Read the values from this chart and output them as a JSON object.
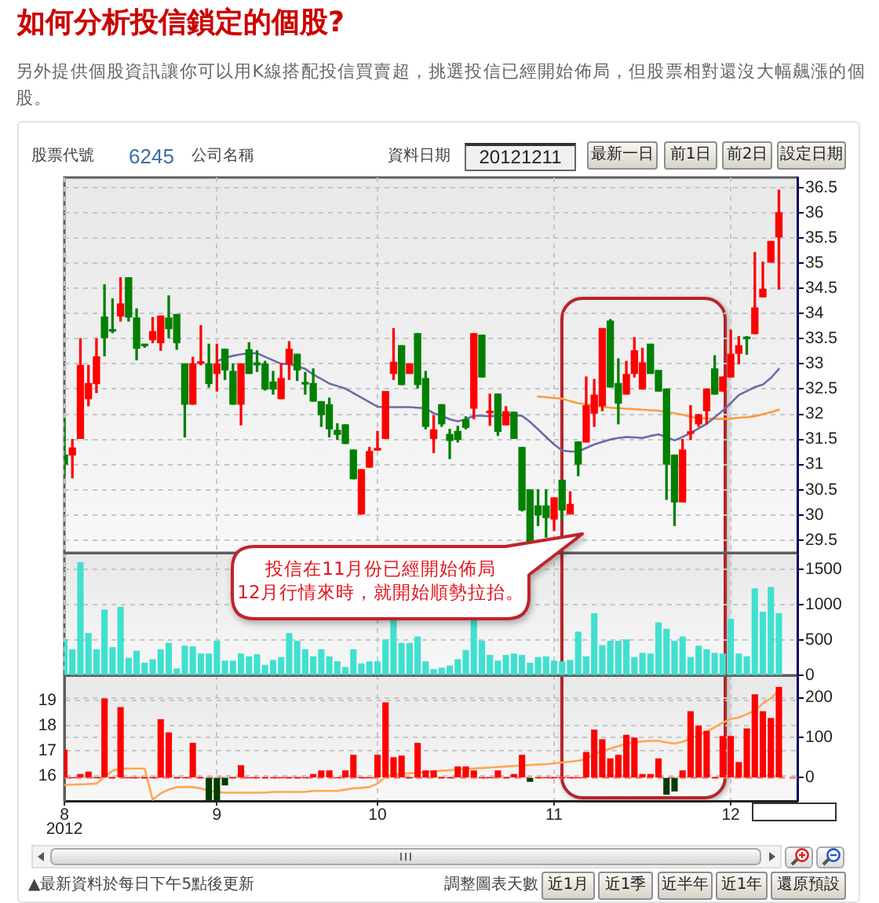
{
  "chart_data": [
    {
      "type": "candlestick",
      "title": "如何分析投信鎖定的個股?",
      "subtitle": "另外提供個股資訊讓你可以用K線搭配投信買賣超，挑選投信已經開始佈局，但股票相對還沒大幅飆漲的個股。",
      "categories": [
        "8",
        null,
        null,
        null,
        null,
        null,
        null,
        null,
        null,
        null,
        null,
        null,
        null,
        null,
        null,
        null,
        null,
        null,
        null,
        "9",
        null,
        null,
        null,
        null,
        null,
        null,
        null,
        null,
        null,
        null,
        null,
        null,
        null,
        null,
        null,
        null,
        null,
        null,
        null,
        "10",
        null,
        null,
        null,
        null,
        null,
        null,
        null,
        null,
        null,
        null,
        null,
        null,
        null,
        null,
        null,
        null,
        null,
        null,
        null,
        null,
        null,
        "11",
        null,
        null,
        null,
        null,
        null,
        null,
        null,
        null,
        null,
        null,
        null,
        null,
        null,
        null,
        null,
        null,
        null,
        null,
        null,
        null,
        null,
        "12",
        null,
        null,
        null,
        null,
        null,
        null
      ],
      "series": [
        {
          "ohlc": [
            [
              31.19,
              31.91,
              30.78,
              31.01
            ],
            [
              31.19,
              31.5,
              30.74,
              31.33
            ],
            [
              31.52,
              33.5,
              31.52,
              32.97
            ],
            [
              32.31,
              32.97,
              32.17,
              32.61
            ],
            [
              32.61,
              33.5,
              32.43,
              33.14
            ],
            [
              33.93,
              34.57,
              33.16,
              33.52
            ],
            [
              33.65,
              34.29,
              33.62,
              33.65
            ],
            [
              33.95,
              34.71,
              33.85,
              34.19
            ],
            [
              34.71,
              34.71,
              33.85,
              33.93
            ],
            [
              33.91,
              34.09,
              33.08,
              33.31
            ],
            [
              33.36,
              33.38,
              33.33,
              33.36
            ],
            [
              33.48,
              33.92,
              33.42,
              33.64
            ],
            [
              33.42,
              33.95,
              33.27,
              33.95
            ],
            [
              33.91,
              34.35,
              33.52,
              33.7
            ],
            [
              33.98,
              33.98,
              33.29,
              33.42
            ],
            [
              33.0,
              33.0,
              31.55,
              32.2
            ],
            [
              32.2,
              33.13,
              32.2,
              33.0
            ],
            [
              33.01,
              33.76,
              32.98,
              33.04
            ],
            [
              33.0,
              33.39,
              32.54,
              32.61
            ],
            [
              32.81,
              33.39,
              32.46,
              33.0
            ],
            [
              33.29,
              33.29,
              32.69,
              32.88
            ],
            [
              32.85,
              33.0,
              32.2,
              32.2
            ],
            [
              32.2,
              33.0,
              31.79,
              33.0
            ],
            [
              33.28,
              33.42,
              32.81,
              32.81
            ],
            [
              33.02,
              33.26,
              32.85,
              32.98
            ],
            [
              33.0,
              33.05,
              32.48,
              32.5
            ],
            [
              32.64,
              32.85,
              32.4,
              32.5
            ],
            [
              32.31,
              33.0,
              32.31,
              32.71
            ],
            [
              33.0,
              33.44,
              32.69,
              33.29
            ],
            [
              33.19,
              33.19,
              32.67,
              32.88
            ],
            [
              32.62,
              32.83,
              32.4,
              32.6
            ],
            [
              32.61,
              32.9,
              32.26,
              32.26
            ],
            [
              32.25,
              32.25,
              31.76,
              31.99
            ],
            [
              32.19,
              32.32,
              31.55,
              31.71
            ],
            [
              31.68,
              31.81,
              31.5,
              31.6
            ],
            [
              31.79,
              31.79,
              31.42,
              31.42
            ],
            [
              31.29,
              31.29,
              30.72,
              30.72
            ],
            [
              30.02,
              30.9,
              30.02,
              30.9
            ],
            [
              30.95,
              31.34,
              30.95,
              31.26
            ],
            [
              31.29,
              31.66,
              31.29,
              31.31
            ],
            [
              31.52,
              32.45,
              31.52,
              32.45
            ],
            [
              32.81,
              33.7,
              32.69,
              33.03
            ],
            [
              33.36,
              33.36,
              32.59,
              32.59
            ],
            [
              32.81,
              33.0,
              32.81,
              33.0
            ],
            [
              33.6,
              33.6,
              32.52,
              32.59
            ],
            [
              32.71,
              32.85,
              31.71,
              31.76
            ],
            [
              31.52,
              31.97,
              31.24,
              31.69
            ],
            [
              32.19,
              32.19,
              31.76,
              31.81
            ],
            [
              31.6,
              31.7,
              31.12,
              31.48
            ],
            [
              31.66,
              31.76,
              31.45,
              31.5
            ],
            [
              31.89,
              31.95,
              31.71,
              31.74
            ],
            [
              32.12,
              33.6,
              31.91,
              33.6
            ],
            [
              33.57,
              33.57,
              32.74,
              32.74
            ],
            [
              32.03,
              32.4,
              31.78,
              32.05
            ],
            [
              32.4,
              32.4,
              31.58,
              31.66
            ],
            [
              31.79,
              32.15,
              31.79,
              32.05
            ],
            [
              32.04,
              32.04,
              31.52,
              31.52
            ],
            [
              31.34,
              31.34,
              30.08,
              30.1
            ],
            [
              30.5,
              30.5,
              29.43,
              29.43
            ],
            [
              30.18,
              30.5,
              29.79,
              30.0
            ],
            [
              30.18,
              30.5,
              29.56,
              29.95
            ],
            [
              29.92,
              30.34,
              29.69,
              30.34
            ],
            [
              30.69,
              30.69,
              29.9,
              30.1
            ],
            [
              30.02,
              30.46,
              30.02,
              30.21
            ],
            [
              31.45,
              31.45,
              30.78,
              31.01
            ],
            [
              31.45,
              32.74,
              31.45,
              32.17
            ],
            [
              32.02,
              32.69,
              31.76,
              32.38
            ],
            [
              32.17,
              33.7,
              32.07,
              33.7
            ],
            [
              33.85,
              33.88,
              32.54,
              32.54
            ],
            [
              32.61,
              33.1,
              31.81,
              32.22
            ],
            [
              32.4,
              33.05,
              32.4,
              32.79
            ],
            [
              32.81,
              33.52,
              32.74,
              33.26
            ],
            [
              32.5,
              33.31,
              32.5,
              33.02
            ],
            [
              33.39,
              33.39,
              32.81,
              32.81
            ],
            [
              32.87,
              32.87,
              32.46,
              32.46
            ],
            [
              32.5,
              32.5,
              30.31,
              31.01
            ],
            [
              31.19,
              31.19,
              29.79,
              30.26
            ],
            [
              30.26,
              31.5,
              30.26,
              31.29
            ],
            [
              31.62,
              32.17,
              31.5,
              31.64
            ],
            [
              31.81,
              31.99,
              31.76,
              31.99
            ],
            [
              32.07,
              32.5,
              31.81,
              32.5
            ],
            [
              32.9,
              33.16,
              32.4,
              32.4
            ],
            [
              32.46,
              32.74,
              32.46,
              32.74
            ],
            [
              32.74,
              33.67,
              32.74,
              33.19
            ],
            [
              33.21,
              33.54,
              33.0,
              33.36
            ],
            [
              33.52,
              33.54,
              33.19,
              33.5
            ],
            [
              33.6,
              35.21,
              33.6,
              34.11
            ],
            [
              34.33,
              35.02,
              34.33,
              34.48
            ],
            [
              35.02,
              35.43,
              35.02,
              35.43
            ],
            [
              35.52,
              36.45,
              34.48,
              36.0
            ]
          ],
          "colors": [
            "#008000",
            "#ff0000",
            "#ff0000",
            "#ff0000",
            "#ff0000",
            "#008000",
            "#008000",
            "#ff0000",
            "#008000",
            "#008000",
            "#008000",
            "#ff0000",
            "#ff0000",
            "#008000",
            "#008000",
            "#008000",
            "#ff0000",
            "#ff0000",
            "#008000",
            "#ff0000",
            "#008000",
            "#008000",
            "#ff0000",
            "#008000",
            "#008000",
            "#008000",
            "#008000",
            "#ff0000",
            "#ff0000",
            "#008000",
            "#008000",
            "#008000",
            "#008000",
            "#008000",
            "#008000",
            "#008000",
            "#008000",
            "#ff0000",
            "#ff0000",
            "#ff0000",
            "#ff0000",
            "#ff0000",
            "#008000",
            "#ff0000",
            "#008000",
            "#008000",
            "#ff0000",
            "#008000",
            "#008000",
            "#008000",
            "#008000",
            "#ff0000",
            "#008000",
            "#ff0000",
            "#008000",
            "#ff0000",
            "#008000",
            "#008000",
            "#008000",
            "#008000",
            "#008000",
            "#ff0000",
            "#008000",
            "#ff0000",
            "#008000",
            "#ff0000",
            "#ff0000",
            "#ff0000",
            "#008000",
            "#008000",
            "#ff0000",
            "#ff0000",
            "#ff0000",
            "#008000",
            "#008000",
            "#008000",
            "#008000",
            "#ff0000",
            "#ff0000",
            "#ff0000",
            "#ff0000",
            "#008000",
            "#ff0000",
            "#ff0000",
            "#ff0000",
            "#008000",
            "#ff0000",
            "#ff0000",
            "#ff0000",
            "#ff0000"
          ]
        },
        {
          "type": "line",
          "color": "#6b6ba8",
          "values": [
            null,
            null,
            null,
            null,
            null,
            null,
            null,
            null,
            null,
            null,
            null,
            null,
            null,
            null,
            null,
            null,
            null,
            null,
            null,
            33.05,
            33.12,
            33.16,
            33.19,
            33.21,
            33.21,
            33.14,
            33.07,
            33.0,
            33.0,
            32.95,
            32.9,
            32.79,
            32.7,
            32.61,
            32.56,
            32.51,
            32.42,
            32.33,
            32.24,
            32.15,
            32.14,
            32.14,
            32.14,
            32.14,
            32.13,
            32.12,
            32.02,
            31.97,
            31.9,
            31.86,
            31.9,
            31.97,
            31.97,
            31.96,
            31.97,
            31.99,
            31.98,
            31.97,
            31.85,
            31.7,
            31.55,
            31.4,
            31.28,
            31.26,
            31.26,
            31.33,
            31.4,
            31.45,
            31.5,
            31.53,
            31.55,
            31.54,
            31.53,
            31.57,
            31.6,
            31.55,
            31.48,
            31.55,
            31.63,
            31.72,
            31.81,
            31.94,
            32.07,
            32.22,
            32.38,
            32.46,
            32.54,
            32.59,
            32.72,
            32.9
          ]
        },
        {
          "type": "line",
          "color": "#ff9c40",
          "values": [
            null,
            null,
            null,
            null,
            null,
            null,
            null,
            null,
            null,
            null,
            null,
            null,
            null,
            null,
            null,
            null,
            null,
            null,
            null,
            null,
            null,
            null,
            null,
            null,
            null,
            null,
            null,
            null,
            null,
            null,
            null,
            null,
            null,
            null,
            null,
            null,
            null,
            null,
            null,
            null,
            null,
            null,
            null,
            null,
            null,
            null,
            null,
            null,
            null,
            null,
            null,
            null,
            null,
            null,
            null,
            null,
            null,
            null,
            null,
            32.35,
            32.34,
            32.32,
            32.31,
            32.26,
            32.22,
            32.2,
            32.17,
            32.15,
            32.13,
            32.12,
            32.11,
            32.1,
            32.09,
            32.08,
            32.07,
            32.04,
            32.02,
            31.99,
            31.95,
            31.92,
            31.92,
            31.91,
            31.91,
            31.91,
            31.93,
            31.94,
            31.96,
            32.0,
            32.04,
            32.09
          ]
        }
      ],
      "ylim": [
        29.25,
        36.7
      ],
      "yticks": [
        29.5,
        30,
        30.5,
        31,
        31.5,
        32,
        32.5,
        33,
        33.5,
        34,
        34.5,
        35,
        35.5,
        36,
        36.5
      ],
      "grid": true,
      "tick_labels": "y",
      "annotations": [
        "股票代號",
        "6245",
        "公司名稱",
        "資料日期",
        "20121211",
        "最新一日",
        "前1日",
        "前2日",
        "設定日期",
        "投信在11月份已經開始佈局",
        "12月行情來時，就開始順勢拉抬。"
      ]
    },
    {
      "type": "bar",
      "categories": [
        "8",
        null,
        null,
        null,
        null,
        null,
        null,
        null,
        null,
        null,
        null,
        null,
        null,
        null,
        null,
        null,
        null,
        null,
        null,
        "9",
        null,
        null,
        null,
        null,
        null,
        null,
        null,
        null,
        null,
        null,
        null,
        null,
        null,
        null,
        null,
        null,
        null,
        null,
        null,
        "10",
        null,
        null,
        null,
        null,
        null,
        null,
        null,
        null,
        null,
        null,
        null,
        null,
        null,
        null,
        null,
        null,
        null,
        null,
        null,
        null,
        null,
        "11",
        null,
        null,
        null,
        null,
        null,
        null,
        null,
        null,
        null,
        null,
        null,
        null,
        null,
        null,
        null,
        null,
        null,
        null,
        null,
        null,
        null,
        "12",
        null,
        null,
        null,
        null,
        null,
        null
      ],
      "values": [
        500,
        360,
        1590,
        590,
        360,
        920,
        390,
        960,
        240,
        340,
        170,
        220,
        360,
        450,
        90,
        410,
        400,
        300,
        300,
        480,
        200,
        200,
        300,
        260,
        290,
        140,
        210,
        250,
        590,
        480,
        360,
        260,
        360,
        260,
        190,
        110,
        360,
        160,
        190,
        190,
        500,
        770,
        450,
        450,
        540,
        190,
        80,
        100,
        130,
        220,
        350,
        770,
        480,
        280,
        200,
        280,
        300,
        280,
        170,
        250,
        260,
        200,
        190,
        210,
        610,
        260,
        870,
        420,
        480,
        480,
        500,
        250,
        310,
        300,
        740,
        650,
        480,
        540,
        250,
        410,
        360,
        310,
        300,
        790,
        300,
        260,
        1220,
        890,
        1240,
        870
      ],
      "color": "#40e0d0",
      "ylim": [
        0,
        1730
      ],
      "yticks": [
        0,
        500,
        1000,
        1500
      ],
      "grid": true,
      "tick_labels": "y"
    },
    {
      "type": "bar",
      "xlabel": "2012",
      "categories": [
        "8",
        null,
        null,
        null,
        null,
        null,
        null,
        null,
        null,
        null,
        null,
        null,
        null,
        null,
        null,
        null,
        null,
        null,
        null,
        "9",
        null,
        null,
        null,
        null,
        null,
        null,
        null,
        null,
        null,
        null,
        null,
        null,
        null,
        null,
        null,
        null,
        null,
        null,
        null,
        "10",
        null,
        null,
        null,
        null,
        null,
        null,
        null,
        null,
        null,
        null,
        null,
        null,
        null,
        null,
        null,
        null,
        null,
        null,
        null,
        null,
        null,
        "11",
        null,
        null,
        null,
        null,
        null,
        null,
        null,
        null,
        null,
        null,
        null,
        null,
        null,
        null,
        null,
        null,
        null,
        null,
        null,
        null,
        null,
        "12",
        null,
        null,
        null,
        null,
        null,
        null
      ],
      "series": [
        {
          "values": [
            69,
            0,
            8,
            14,
            0,
            197,
            0,
            175,
            0,
            0,
            0,
            0,
            145,
            112,
            0,
            0,
            86,
            0,
            -55,
            -55,
            -18,
            0,
            30,
            0,
            0,
            0,
            0,
            0,
            0,
            0,
            0,
            8,
            17,
            17,
            0,
            17,
            56,
            0,
            0,
            56,
            187,
            50,
            54,
            0,
            86,
            17,
            17,
            0,
            0,
            27,
            27,
            17,
            0,
            0,
            17,
            0,
            8,
            56,
            -9,
            0,
            0,
            0,
            0,
            0,
            0,
            63,
            119,
            95,
            47,
            56,
            106,
            99,
            8,
            8,
            47,
            -41,
            -33,
            17,
            165,
            129,
            116,
            0,
            103,
            103,
            38,
            122,
            207,
            165,
            148,
            226
          ],
          "colors": [
            "#ff0000",
            "#ff0000",
            "#ff0000",
            "#ff0000",
            "#ff0000",
            "#ff0000",
            "#ff0000",
            "#ff0000",
            "#ff0000",
            "#ff0000",
            "#ff0000",
            "#ff0000",
            "#ff0000",
            "#ff0000",
            "#ff0000",
            "#ff0000",
            "#ff0000",
            "#ff0000",
            "#003c00",
            "#003c00",
            "#003c00",
            "#ff0000",
            "#ff0000",
            "#ff0000",
            "#ff0000",
            "#ff0000",
            "#ff0000",
            "#ff0000",
            "#ff0000",
            "#ff0000",
            "#ff0000",
            "#ff0000",
            "#ff0000",
            "#ff0000",
            "#ff0000",
            "#ff0000",
            "#ff0000",
            "#ff0000",
            "#ff0000",
            "#ff0000",
            "#ff0000",
            "#ff0000",
            "#ff0000",
            "#ff0000",
            "#ff0000",
            "#ff0000",
            "#ff0000",
            "#ff0000",
            "#ff0000",
            "#ff0000",
            "#ff0000",
            "#ff0000",
            "#ff0000",
            "#ff0000",
            "#ff0000",
            "#ff0000",
            "#ff0000",
            "#ff0000",
            "#003c00",
            "#ff0000",
            "#ff0000",
            "#ff0000",
            "#ff0000",
            "#ff0000",
            "#ff0000",
            "#ff0000",
            "#ff0000",
            "#ff0000",
            "#ff0000",
            "#ff0000",
            "#ff0000",
            "#ff0000",
            "#ff0000",
            "#ff0000",
            "#ff0000",
            "#003c00",
            "#003c00",
            "#ff0000",
            "#ff0000",
            "#ff0000",
            "#ff0000",
            "#ff0000",
            "#ff0000",
            "#ff0000",
            "#ff0000",
            "#ff0000",
            "#ff0000",
            "#ff0000",
            "#ff0000",
            "#ff0000"
          ]
        },
        {
          "type": "line",
          "axis": "y2",
          "color": "#ffa654",
          "values": [
            15.63,
            15.65,
            15.66,
            15.67,
            15.69,
            15.95,
            16.2,
            16.29,
            16.29,
            16.29,
            16.29,
            15.05,
            15.3,
            15.45,
            15.55,
            15.56,
            15.55,
            15.5,
            15.4,
            15.35,
            15.33,
            15.33,
            15.33,
            15.33,
            15.33,
            15.33,
            15.36,
            15.36,
            15.36,
            15.36,
            15.36,
            15.4,
            15.4,
            15.4,
            15.4,
            15.45,
            15.5,
            15.52,
            15.55,
            15.69,
            15.95,
            16.05,
            16.08,
            16.1,
            16.12,
            16.15,
            16.18,
            16.2,
            16.22,
            16.25,
            16.27,
            16.29,
            16.31,
            16.33,
            16.35,
            16.37,
            16.39,
            16.41,
            16.43,
            16.45,
            16.46,
            16.5,
            16.53,
            16.56,
            16.6,
            16.66,
            16.87,
            16.97,
            17.08,
            17.18,
            17.28,
            17.33,
            17.37,
            17.39,
            17.39,
            17.33,
            17.28,
            17.35,
            17.49,
            17.62,
            17.76,
            17.93,
            18.11,
            18.26,
            18.32,
            18.45,
            18.59,
            18.88,
            19.08,
            19.4
          ]
        }
      ],
      "ylim": [
        -58,
        256
      ],
      "yticks": [
        0,
        100,
        200
      ],
      "y2lim": [
        15,
        20
      ],
      "y2ticks": [
        16,
        17,
        18,
        19
      ],
      "grid": true,
      "ref_lines": [
        {
          "axis": "y",
          "value": 0,
          "color": "#ff7a7a",
          "line_style": "dashed"
        }
      ],
      "annotations": [
        "▲最新資料於每日下午5點後更新",
        "調整圖表天數",
        "近1月",
        "近1季",
        "近半年",
        "近1年",
        "還原預設"
      ]
    }
  ]
}
